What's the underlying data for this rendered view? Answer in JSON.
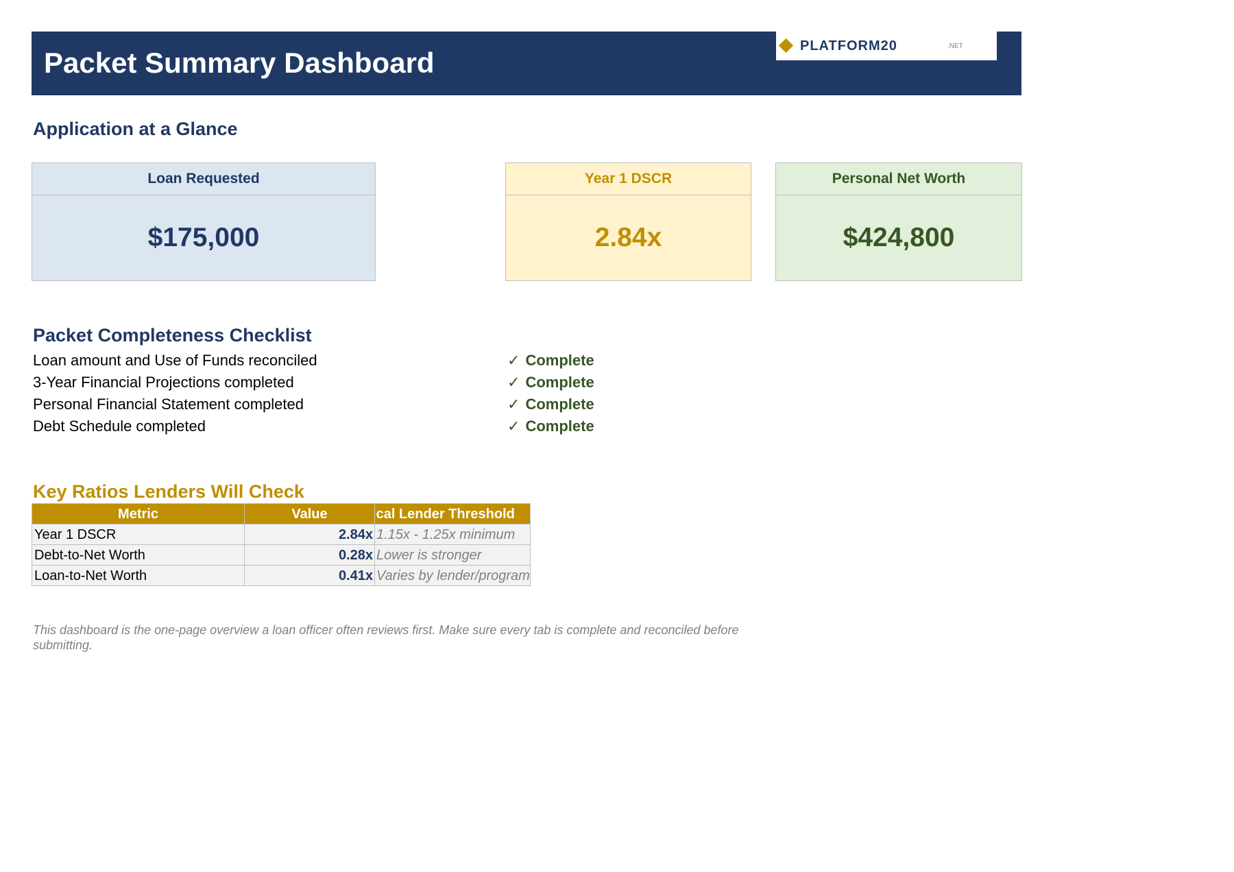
{
  "header": {
    "title": "Packet Summary Dashboard",
    "logo": {
      "name": "PLATFORM20",
      "suffix": ".NET",
      "icon": "diamond-icon",
      "brand_color": "#203864",
      "accent_color": "#bf8f00"
    }
  },
  "glance": {
    "heading": "Application at a Glance",
    "cards": [
      {
        "label": "Loan Requested",
        "value": "$175,000",
        "color": "#203864",
        "background": "#dce6f0"
      },
      {
        "label": "Year 1 DSCR",
        "value": "2.84x",
        "color": "#bf8f00",
        "background": "#fff2cc"
      },
      {
        "label": "Personal Net Worth",
        "value": "$424,800",
        "color": "#375623",
        "background": "#e2efda"
      }
    ]
  },
  "checklist": {
    "heading": "Packet Completeness Checklist",
    "check_glyph": "✓",
    "items": [
      {
        "label": "Loan amount and Use of Funds reconciled",
        "status": "Complete"
      },
      {
        "label": "3-Year Financial Projections completed",
        "status": "Complete"
      },
      {
        "label": "Personal Financial Statement completed",
        "status": "Complete"
      },
      {
        "label": "Debt Schedule completed",
        "status": "Complete"
      }
    ]
  },
  "ratios": {
    "heading": "Key Ratios Lenders Will Check",
    "columns": [
      "Metric",
      "Value",
      "Typical Lender Threshold"
    ],
    "rows": [
      {
        "metric": "Year 1 DSCR",
        "value": "2.84x",
        "threshold": "1.15x - 1.25x minimum"
      },
      {
        "metric": "Debt-to-Net Worth",
        "value": "0.28x",
        "threshold": "Lower is stronger"
      },
      {
        "metric": "Loan-to-Net Worth",
        "value": "0.41x",
        "threshold": "Varies by lender/program"
      }
    ]
  },
  "footnote": "This dashboard is the one-page overview a loan officer often reviews first. Make sure every tab is complete and reconciled before submitting."
}
